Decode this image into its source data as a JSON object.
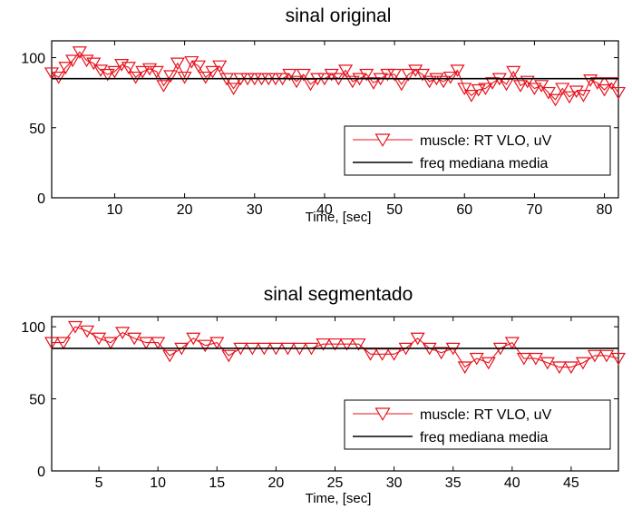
{
  "chart_data": [
    {
      "type": "line",
      "title": "sinal original",
      "xlabel": "Time,  [sec]",
      "ylabel": "",
      "xlim": [
        1,
        82
      ],
      "ylim": [
        0,
        112
      ],
      "xticks": [
        10,
        20,
        30,
        40,
        50,
        60,
        70,
        80
      ],
      "yticks": [
        0,
        50,
        100
      ],
      "grid": false,
      "legend_position": "bottom-right",
      "series": [
        {
          "name": "muscle: RT VLO, uV",
          "color": "#e8101a",
          "marker": "triangle-down",
          "x": [
            1,
            2,
            3,
            4,
            5,
            6,
            7,
            8,
            9,
            10,
            11,
            12,
            13,
            14,
            15,
            16,
            17,
            18,
            19,
            20,
            21,
            22,
            23,
            24,
            25,
            26,
            27,
            28,
            29,
            30,
            31,
            32,
            33,
            34,
            35,
            36,
            37,
            38,
            39,
            40,
            41,
            42,
            43,
            44,
            45,
            46,
            47,
            48,
            49,
            50,
            51,
            52,
            53,
            54,
            55,
            56,
            57,
            58,
            59,
            60,
            61,
            62,
            63,
            64,
            65,
            66,
            67,
            68,
            69,
            70,
            71,
            72,
            73,
            74,
            75,
            76,
            77,
            78,
            79,
            80,
            81,
            82
          ],
          "y": [
            89,
            86,
            93,
            98,
            104,
            98,
            96,
            91,
            88,
            90,
            95,
            93,
            86,
            90,
            92,
            90,
            80,
            87,
            96,
            86,
            97,
            94,
            86,
            90,
            94,
            85,
            78,
            85,
            85,
            85,
            85,
            85,
            85,
            85,
            88,
            83,
            88,
            81,
            85,
            85,
            88,
            85,
            91,
            83,
            85,
            88,
            82,
            85,
            88,
            88,
            81,
            88,
            91,
            88,
            83,
            85,
            83,
            86,
            91,
            78,
            73,
            77,
            78,
            82,
            85,
            81,
            90,
            80,
            83,
            78,
            80,
            75,
            70,
            78,
            72,
            76,
            73,
            84,
            82,
            77,
            82,
            75
          ]
        },
        {
          "name": "freq mediana media",
          "color": "#000000",
          "marker": "none",
          "x": [
            1,
            82
          ],
          "y": [
            85,
            85
          ]
        }
      ]
    },
    {
      "type": "line",
      "title": "sinal segmentado",
      "xlabel": "Time,  [sec]",
      "ylabel": "",
      "xlim": [
        1,
        49
      ],
      "ylim": [
        0,
        107
      ],
      "xticks": [
        5,
        10,
        15,
        20,
        25,
        30,
        35,
        40,
        45
      ],
      "yticks": [
        0,
        50,
        100
      ],
      "grid": false,
      "legend_position": "bottom-right",
      "series": [
        {
          "name": "muscle: RT VLO, uV",
          "color": "#e8101a",
          "marker": "triangle-down",
          "x": [
            1,
            2,
            3,
            4,
            5,
            6,
            7,
            8,
            9,
            10,
            11,
            12,
            13,
            14,
            15,
            16,
            17,
            18,
            19,
            20,
            21,
            22,
            23,
            24,
            25,
            26,
            27,
            28,
            29,
            30,
            31,
            32,
            33,
            34,
            35,
            36,
            37,
            38,
            39,
            40,
            41,
            42,
            43,
            44,
            45,
            46,
            47,
            48,
            49
          ],
          "y": [
            89,
            89,
            100,
            97,
            92,
            89,
            96,
            92,
            89,
            89,
            80,
            85,
            92,
            87,
            89,
            80,
            85,
            85,
            85,
            85,
            85,
            85,
            85,
            88,
            88,
            88,
            88,
            81,
            81,
            81,
            85,
            92,
            85,
            82,
            85,
            72,
            78,
            75,
            85,
            89,
            78,
            78,
            75,
            72,
            72,
            75,
            80,
            80,
            78
          ]
        },
        {
          "name": "freq mediana media",
          "color": "#000000",
          "marker": "none",
          "x": [
            1,
            49
          ],
          "y": [
            85,
            85
          ]
        }
      ]
    }
  ]
}
